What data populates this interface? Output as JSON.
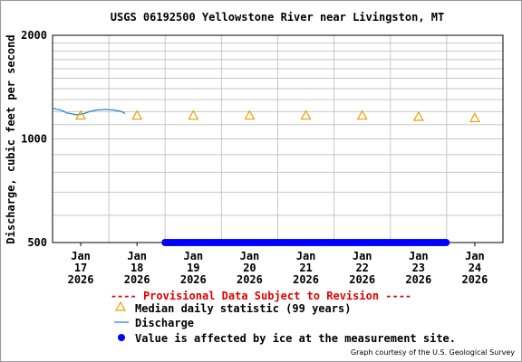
{
  "chart_data": {
    "type": "line",
    "title": "USGS 06192500 Yellowstone River near Livingston, MT",
    "ylabel": "Discharge, cubic feet per second",
    "y_scale": "log",
    "ylim": [
      500,
      2000
    ],
    "y_ticks": [
      "500",
      "1000",
      "2000"
    ],
    "x_ticks": [
      {
        "line1": "Jan",
        "line2": "17",
        "line3": "2026"
      },
      {
        "line1": "Jan",
        "line2": "18",
        "line3": "2026"
      },
      {
        "line1": "Jan",
        "line2": "19",
        "line3": "2026"
      },
      {
        "line1": "Jan",
        "line2": "20",
        "line3": "2026"
      },
      {
        "line1": "Jan",
        "line2": "21",
        "line3": "2026"
      },
      {
        "line1": "Jan",
        "line2": "22",
        "line3": "2026"
      },
      {
        "line1": "Jan",
        "line2": "23",
        "line3": "2026"
      },
      {
        "line1": "Jan",
        "line2": "24",
        "line3": "2026"
      }
    ],
    "grid": true,
    "series": [
      {
        "name": "Median daily statistic (99 years)",
        "kind": "triangle-markers",
        "color": "#e8a000",
        "points": [
          {
            "x": "2026-01-17",
            "y": 1170
          },
          {
            "x": "2026-01-18",
            "y": 1170
          },
          {
            "x": "2026-01-19",
            "y": 1170
          },
          {
            "x": "2026-01-20",
            "y": 1170
          },
          {
            "x": "2026-01-21",
            "y": 1170
          },
          {
            "x": "2026-01-22",
            "y": 1170
          },
          {
            "x": "2026-01-23",
            "y": 1160
          },
          {
            "x": "2026-01-24",
            "y": 1150
          }
        ]
      },
      {
        "name": "Discharge",
        "kind": "line",
        "color": "#1a7fd0",
        "points": [
          {
            "x": "2026-01-16T12:00",
            "y": 1230
          },
          {
            "x": "2026-01-16T13:30",
            "y": 1220
          },
          {
            "x": "2026-01-16T15:00",
            "y": 1215
          },
          {
            "x": "2026-01-16T16:30",
            "y": 1205
          },
          {
            "x": "2026-01-16T18:00",
            "y": 1190
          },
          {
            "x": "2026-01-16T19:30",
            "y": 1185
          },
          {
            "x": "2026-01-16T21:00",
            "y": 1180
          },
          {
            "x": "2026-01-16T22:30",
            "y": 1175
          },
          {
            "x": "2026-01-17T00:00",
            "y": 1180
          },
          {
            "x": "2026-01-17T01:30",
            "y": 1185
          },
          {
            "x": "2026-01-17T03:00",
            "y": 1195
          },
          {
            "x": "2026-01-17T04:30",
            "y": 1205
          },
          {
            "x": "2026-01-17T06:00",
            "y": 1210
          },
          {
            "x": "2026-01-17T07:30",
            "y": 1215
          },
          {
            "x": "2026-01-17T09:00",
            "y": 1215
          },
          {
            "x": "2026-01-17T10:30",
            "y": 1220
          },
          {
            "x": "2026-01-17T12:00",
            "y": 1215
          },
          {
            "x": "2026-01-17T13:30",
            "y": 1215
          },
          {
            "x": "2026-01-17T15:00",
            "y": 1210
          },
          {
            "x": "2026-01-17T16:30",
            "y": 1205
          },
          {
            "x": "2026-01-17T18:00",
            "y": 1195
          },
          {
            "x": "2026-01-17T19:00",
            "y": 1185
          }
        ]
      },
      {
        "name": "Value is affected by ice at the measurement site.",
        "kind": "dot-markers",
        "color": "#0000ff",
        "y": 500,
        "x_start": "2026-01-18T12:00",
        "x_end": "2026-01-23T12:00"
      }
    ]
  },
  "provisional_note": "---- Provisional Data Subject to Revision ----",
  "credit": "Graph courtesy of the U.S. Geological Survey"
}
